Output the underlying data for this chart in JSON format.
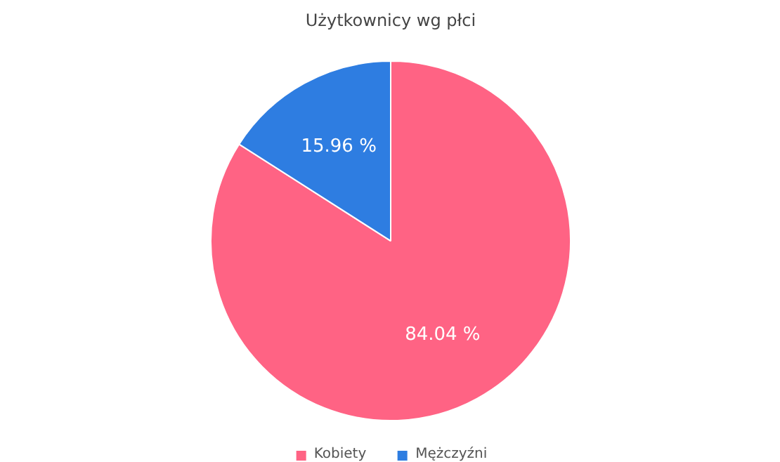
{
  "chart_data": {
    "type": "pie",
    "title": "Użytkownicy wg płci",
    "categories": [
      "Kobiety",
      "Mężczyźni"
    ],
    "values": [
      84.04,
      15.96
    ],
    "colors": [
      "#ff6384",
      "#2e7de1"
    ],
    "value_labels": [
      "84.04 %",
      "15.96 %"
    ],
    "legend": "bottom"
  }
}
